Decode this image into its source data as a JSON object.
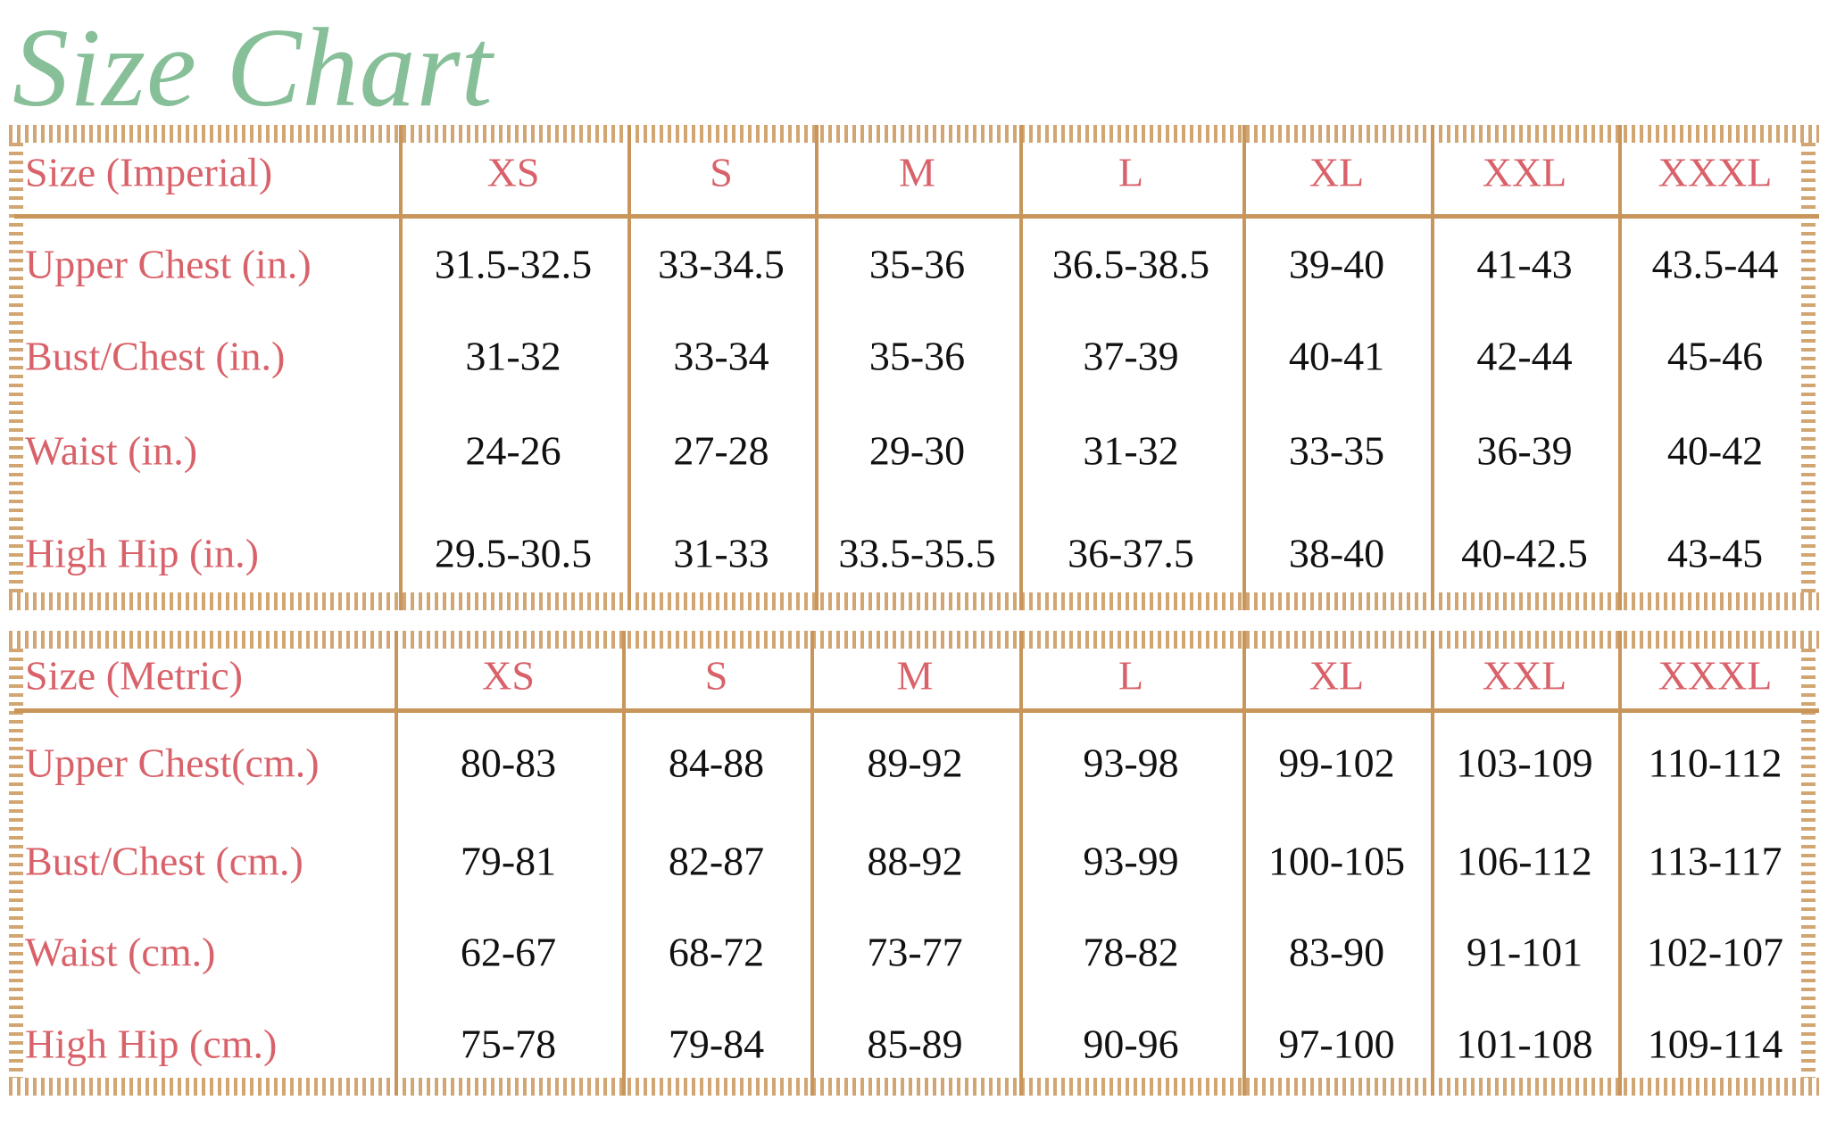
{
  "title": "Size Chart",
  "colors": {
    "title": "#86bf98",
    "labels": "#d9626a",
    "rule": "#c8955a",
    "values": "#111111"
  },
  "tables": [
    {
      "header": "Size (Imperial)",
      "sizes": [
        "XS",
        "S",
        "M",
        "L",
        "XL",
        "XXL",
        "XXXL"
      ],
      "rows": [
        {
          "label": "Upper Chest (in.)",
          "values": [
            "31.5-32.5",
            "33-34.5",
            "35-36",
            "36.5-38.5",
            "39-40",
            "41-43",
            "43.5-44"
          ]
        },
        {
          "label": "Bust/Chest (in.)",
          "values": [
            "31-32",
            "33-34",
            "35-36",
            "37-39",
            "40-41",
            "42-44",
            "45-46"
          ]
        },
        {
          "label": "Waist (in.)",
          "values": [
            "24-26",
            "27-28",
            "29-30",
            "31-32",
            "33-35",
            "36-39",
            "40-42"
          ]
        },
        {
          "label": "High Hip (in.)",
          "values": [
            "29.5-30.5",
            "31-33",
            "33.5-35.5",
            "36-37.5",
            "38-40",
            "40-42.5",
            "43-45"
          ]
        }
      ]
    },
    {
      "header": "Size (Metric)",
      "sizes": [
        "XS",
        "S",
        "M",
        "L",
        "XL",
        "XXL",
        "XXXL"
      ],
      "rows": [
        {
          "label": "Upper Chest(cm.)",
          "values": [
            "80-83",
            "84-88",
            "89-92",
            "93-98",
            "99-102",
            "103-109",
            "110-112"
          ]
        },
        {
          "label": "Bust/Chest (cm.)",
          "values": [
            "79-81",
            "82-87",
            "88-92",
            "93-99",
            "100-105",
            "106-112",
            "113-117"
          ]
        },
        {
          "label": "Waist (cm.)",
          "values": [
            "62-67",
            "68-72",
            "73-77",
            "78-82",
            "83-90",
            "91-101",
            "102-107"
          ]
        },
        {
          "label": "High Hip (cm.)",
          "values": [
            "75-78",
            "79-84",
            "85-89",
            "90-96",
            "97-100",
            "101-108",
            "109-114"
          ]
        }
      ]
    }
  ]
}
